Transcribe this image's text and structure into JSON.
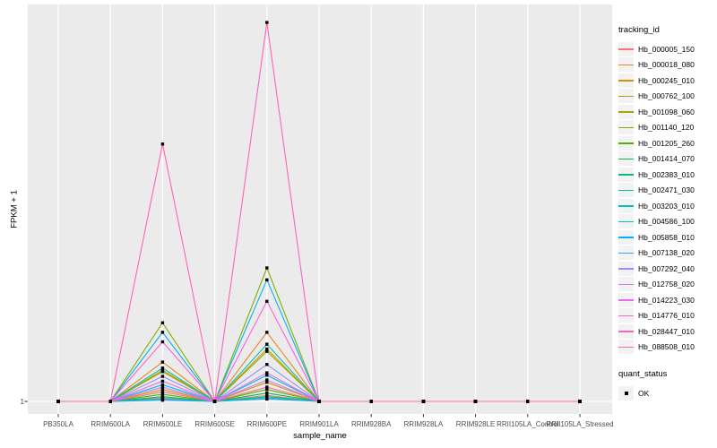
{
  "chart_data": {
    "type": "line",
    "title": "",
    "xlabel": "sample_name",
    "ylabel": "FPKM + 1",
    "y_ticks": [
      "1"
    ],
    "ylim": [
      1,
      167
    ],
    "grid": true,
    "panel_bg": "#EBEBEB",
    "grid_color": "#FFFFFF",
    "point_color": "#000000",
    "tick_label_color": "#4D4D4D",
    "categories": [
      "PB350LA",
      "RRIM600LA",
      "RRIM600LE",
      "RRIM600SE",
      "RRIM600PE",
      "RRIM901LA",
      "RRIM928BA",
      "RRIM928LA",
      "RRIM928LE",
      "RRII105LA_Control",
      "RRII105LA_Stressed"
    ],
    "series": [
      {
        "name": "Hb_000005_150",
        "color": "#F8766D",
        "values": [
          1,
          1,
          2.5,
          1,
          3.5,
          1,
          1,
          1,
          1,
          1,
          1
        ]
      },
      {
        "name": "Hb_000018_080",
        "color": "#E88526",
        "values": [
          1,
          1,
          17.5,
          1,
          30,
          1,
          1,
          1,
          1,
          1,
          1
        ]
      },
      {
        "name": "Hb_000245_010",
        "color": "#D89000",
        "values": [
          1,
          1,
          6,
          1,
          9,
          1,
          1,
          1,
          1,
          1,
          1
        ]
      },
      {
        "name": "Hb_000762_100",
        "color": "#C09B00",
        "values": [
          1,
          1,
          14,
          1,
          23,
          1,
          1,
          1,
          1,
          1,
          1
        ]
      },
      {
        "name": "Hb_001098_060",
        "color": "#A3A500",
        "values": [
          1,
          1,
          13.5,
          1,
          22,
          1,
          1,
          1,
          1,
          1,
          1
        ]
      },
      {
        "name": "Hb_001140_120",
        "color": "#7CAE00",
        "values": [
          1,
          1,
          34,
          1,
          57,
          1,
          1,
          1,
          1,
          1,
          1
        ]
      },
      {
        "name": "Hb_001205_260",
        "color": "#49B500",
        "values": [
          1,
          1,
          4,
          1,
          6,
          1,
          1,
          1,
          1,
          1,
          1
        ]
      },
      {
        "name": "Hb_001414_070",
        "color": "#00BB4E",
        "values": [
          1,
          1,
          3,
          1,
          4.5,
          1,
          1,
          1,
          1,
          1,
          1
        ]
      },
      {
        "name": "Hb_002383_010",
        "color": "#00BF7D",
        "values": [
          1,
          1,
          2,
          1,
          3,
          1,
          1,
          1,
          1,
          1,
          1
        ]
      },
      {
        "name": "Hb_002471_030",
        "color": "#00C1A3",
        "values": [
          1,
          1,
          15,
          1,
          25,
          1,
          1,
          1,
          1,
          1,
          1
        ]
      },
      {
        "name": "Hb_003203_010",
        "color": "#00BFC4",
        "values": [
          1,
          1,
          2,
          1,
          2.5,
          1,
          1,
          1,
          1,
          1,
          1
        ]
      },
      {
        "name": "Hb_004586_100",
        "color": "#00BAE0",
        "values": [
          1,
          1,
          8,
          1,
          12,
          1,
          1,
          1,
          1,
          1,
          1
        ]
      },
      {
        "name": "Hb_005858_010",
        "color": "#00B0F6",
        "values": [
          1,
          1,
          30,
          1,
          52,
          1,
          1,
          1,
          1,
          1,
          1
        ]
      },
      {
        "name": "Hb_007138_020",
        "color": "#35A2FF",
        "values": [
          1,
          1,
          1.5,
          1,
          2,
          1,
          1,
          1,
          1,
          1,
          1
        ]
      },
      {
        "name": "Hb_007292_040",
        "color": "#9590FF",
        "values": [
          1,
          1,
          11.5,
          1,
          16.5,
          1,
          1,
          1,
          1,
          1,
          1
        ]
      },
      {
        "name": "Hb_012758_020",
        "color": "#C77CFF",
        "values": [
          1,
          1,
          7,
          1,
          10,
          1,
          1,
          1,
          1,
          1,
          1
        ]
      },
      {
        "name": "Hb_014223_030",
        "color": "#E76BF3",
        "values": [
          1,
          1,
          9.5,
          1,
          13,
          1,
          1,
          1,
          1,
          1,
          1
        ]
      },
      {
        "name": "Hb_014776_010",
        "color": "#FA62DB",
        "values": [
          1,
          1,
          26,
          1,
          43,
          1,
          1,
          1,
          1,
          1,
          1
        ]
      },
      {
        "name": "Hb_028447_010",
        "color": "#FF62BC",
        "values": [
          1,
          1,
          109,
          1,
          160,
          1,
          1,
          1,
          1,
          1,
          1
        ]
      },
      {
        "name": "Hb_088508_010",
        "color": "#FF6A98",
        "values": [
          1,
          1,
          5,
          1,
          7,
          1,
          1,
          1,
          1,
          1,
          1
        ]
      }
    ],
    "legend": {
      "position": "right",
      "color_title": "tracking_id",
      "shape_title": "quant_status",
      "shape_items": [
        {
          "label": "OK",
          "marker": "black-square"
        }
      ]
    }
  }
}
